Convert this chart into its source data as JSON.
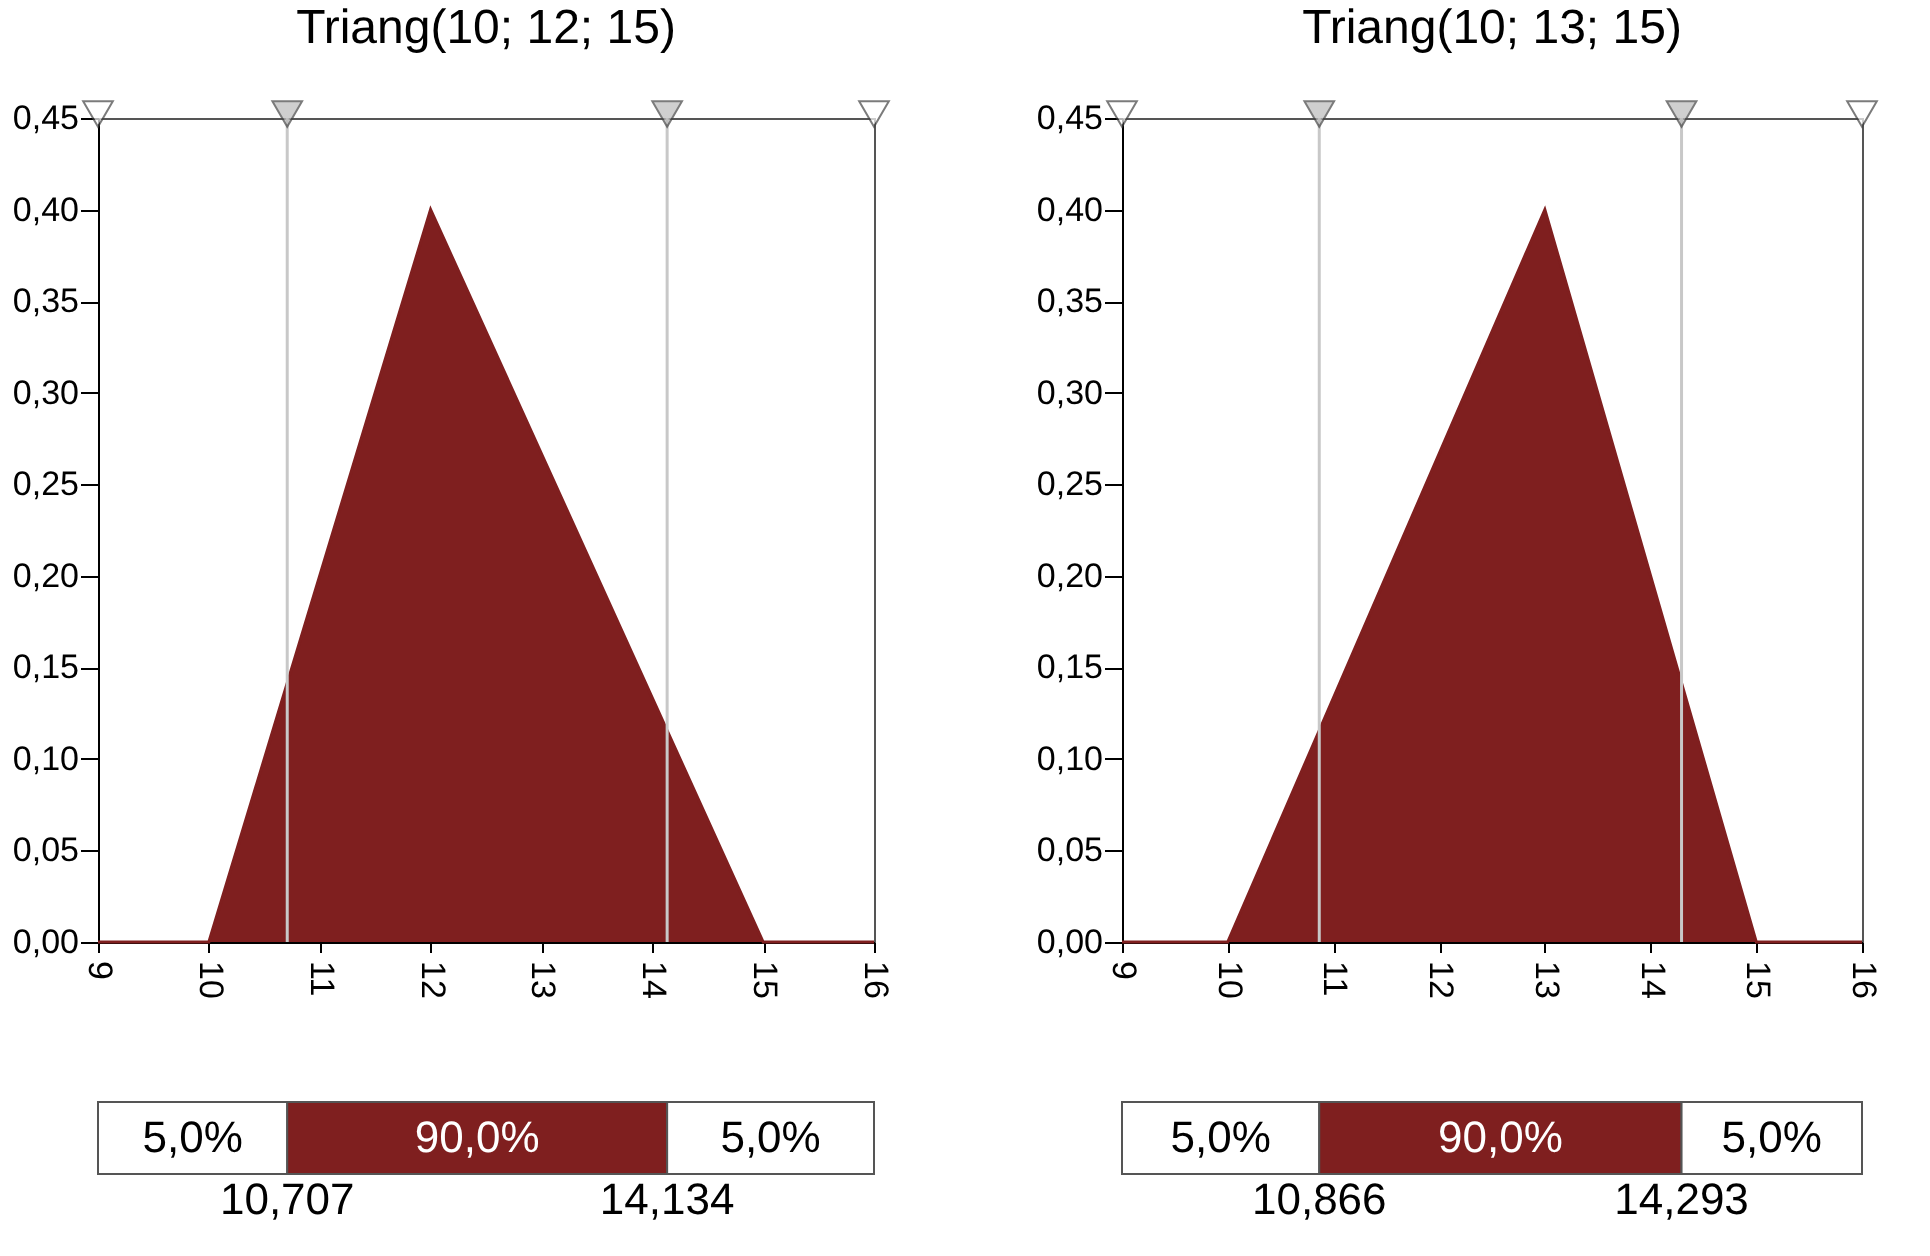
{
  "chart_data": [
    {
      "type": "area",
      "title": "Triang(10; 12; 15)",
      "x": [
        9,
        10,
        12,
        15,
        16
      ],
      "series": [
        {
          "color": "#7f1f1f",
          "values": [
            0,
            0,
            0.4,
            0,
            0
          ]
        }
      ],
      "xlim": [
        9,
        16
      ],
      "xticks": [
        9,
        10,
        11,
        12,
        13,
        14,
        15,
        16
      ],
      "ylim": [
        0,
        0.45
      ],
      "yticks": [
        {
          "value": 0,
          "label": "0,00"
        },
        {
          "value": 0.05,
          "label": "0,05"
        },
        {
          "value": 0.1,
          "label": "0,10"
        },
        {
          "value": 0.15,
          "label": "0,15"
        },
        {
          "value": 0.2,
          "label": "0,20"
        },
        {
          "value": 0.25,
          "label": "0,25"
        },
        {
          "value": 0.3,
          "label": "0,30"
        },
        {
          "value": 0.35,
          "label": "0,35"
        },
        {
          "value": 0.4,
          "label": "0,40"
        },
        {
          "value": 0.45,
          "label": "0,45"
        }
      ],
      "ref_lines": [
        {
          "axis": "x",
          "value": 10.707,
          "color": "#c8c8c8"
        },
        {
          "axis": "x",
          "value": 14.134,
          "color": "#c8c8c8"
        }
      ],
      "annotations": [
        "5,0%",
        "90,0%",
        "5,0%",
        "10,707",
        "14,134"
      ],
      "grid": false
    },
    {
      "type": "area",
      "title": "Triang(10; 13; 15)",
      "x": [
        9,
        10,
        13,
        15,
        16
      ],
      "series": [
        {
          "color": "#7f1f1f",
          "values": [
            0,
            0,
            0.4,
            0,
            0
          ]
        }
      ],
      "xlim": [
        9,
        16
      ],
      "xticks": [
        9,
        10,
        11,
        12,
        13,
        14,
        15,
        16
      ],
      "ylim": [
        0,
        0.45
      ],
      "yticks": [
        {
          "value": 0,
          "label": "0,00"
        },
        {
          "value": 0.05,
          "label": "0,05"
        },
        {
          "value": 0.1,
          "label": "0,10"
        },
        {
          "value": 0.15,
          "label": "0,15"
        },
        {
          "value": 0.2,
          "label": "0,20"
        },
        {
          "value": 0.25,
          "label": "0,25"
        },
        {
          "value": 0.3,
          "label": "0,30"
        },
        {
          "value": 0.35,
          "label": "0,35"
        },
        {
          "value": 0.4,
          "label": "0,40"
        },
        {
          "value": 0.45,
          "label": "0,45"
        }
      ],
      "ref_lines": [
        {
          "axis": "x",
          "value": 10.866,
          "color": "#c8c8c8"
        },
        {
          "axis": "x",
          "value": 14.293,
          "color": "#c8c8c8"
        }
      ],
      "annotations": [
        "5,0%",
        "90,0%",
        "5,0%",
        "10,866",
        "14,293"
      ],
      "grid": false
    }
  ]
}
